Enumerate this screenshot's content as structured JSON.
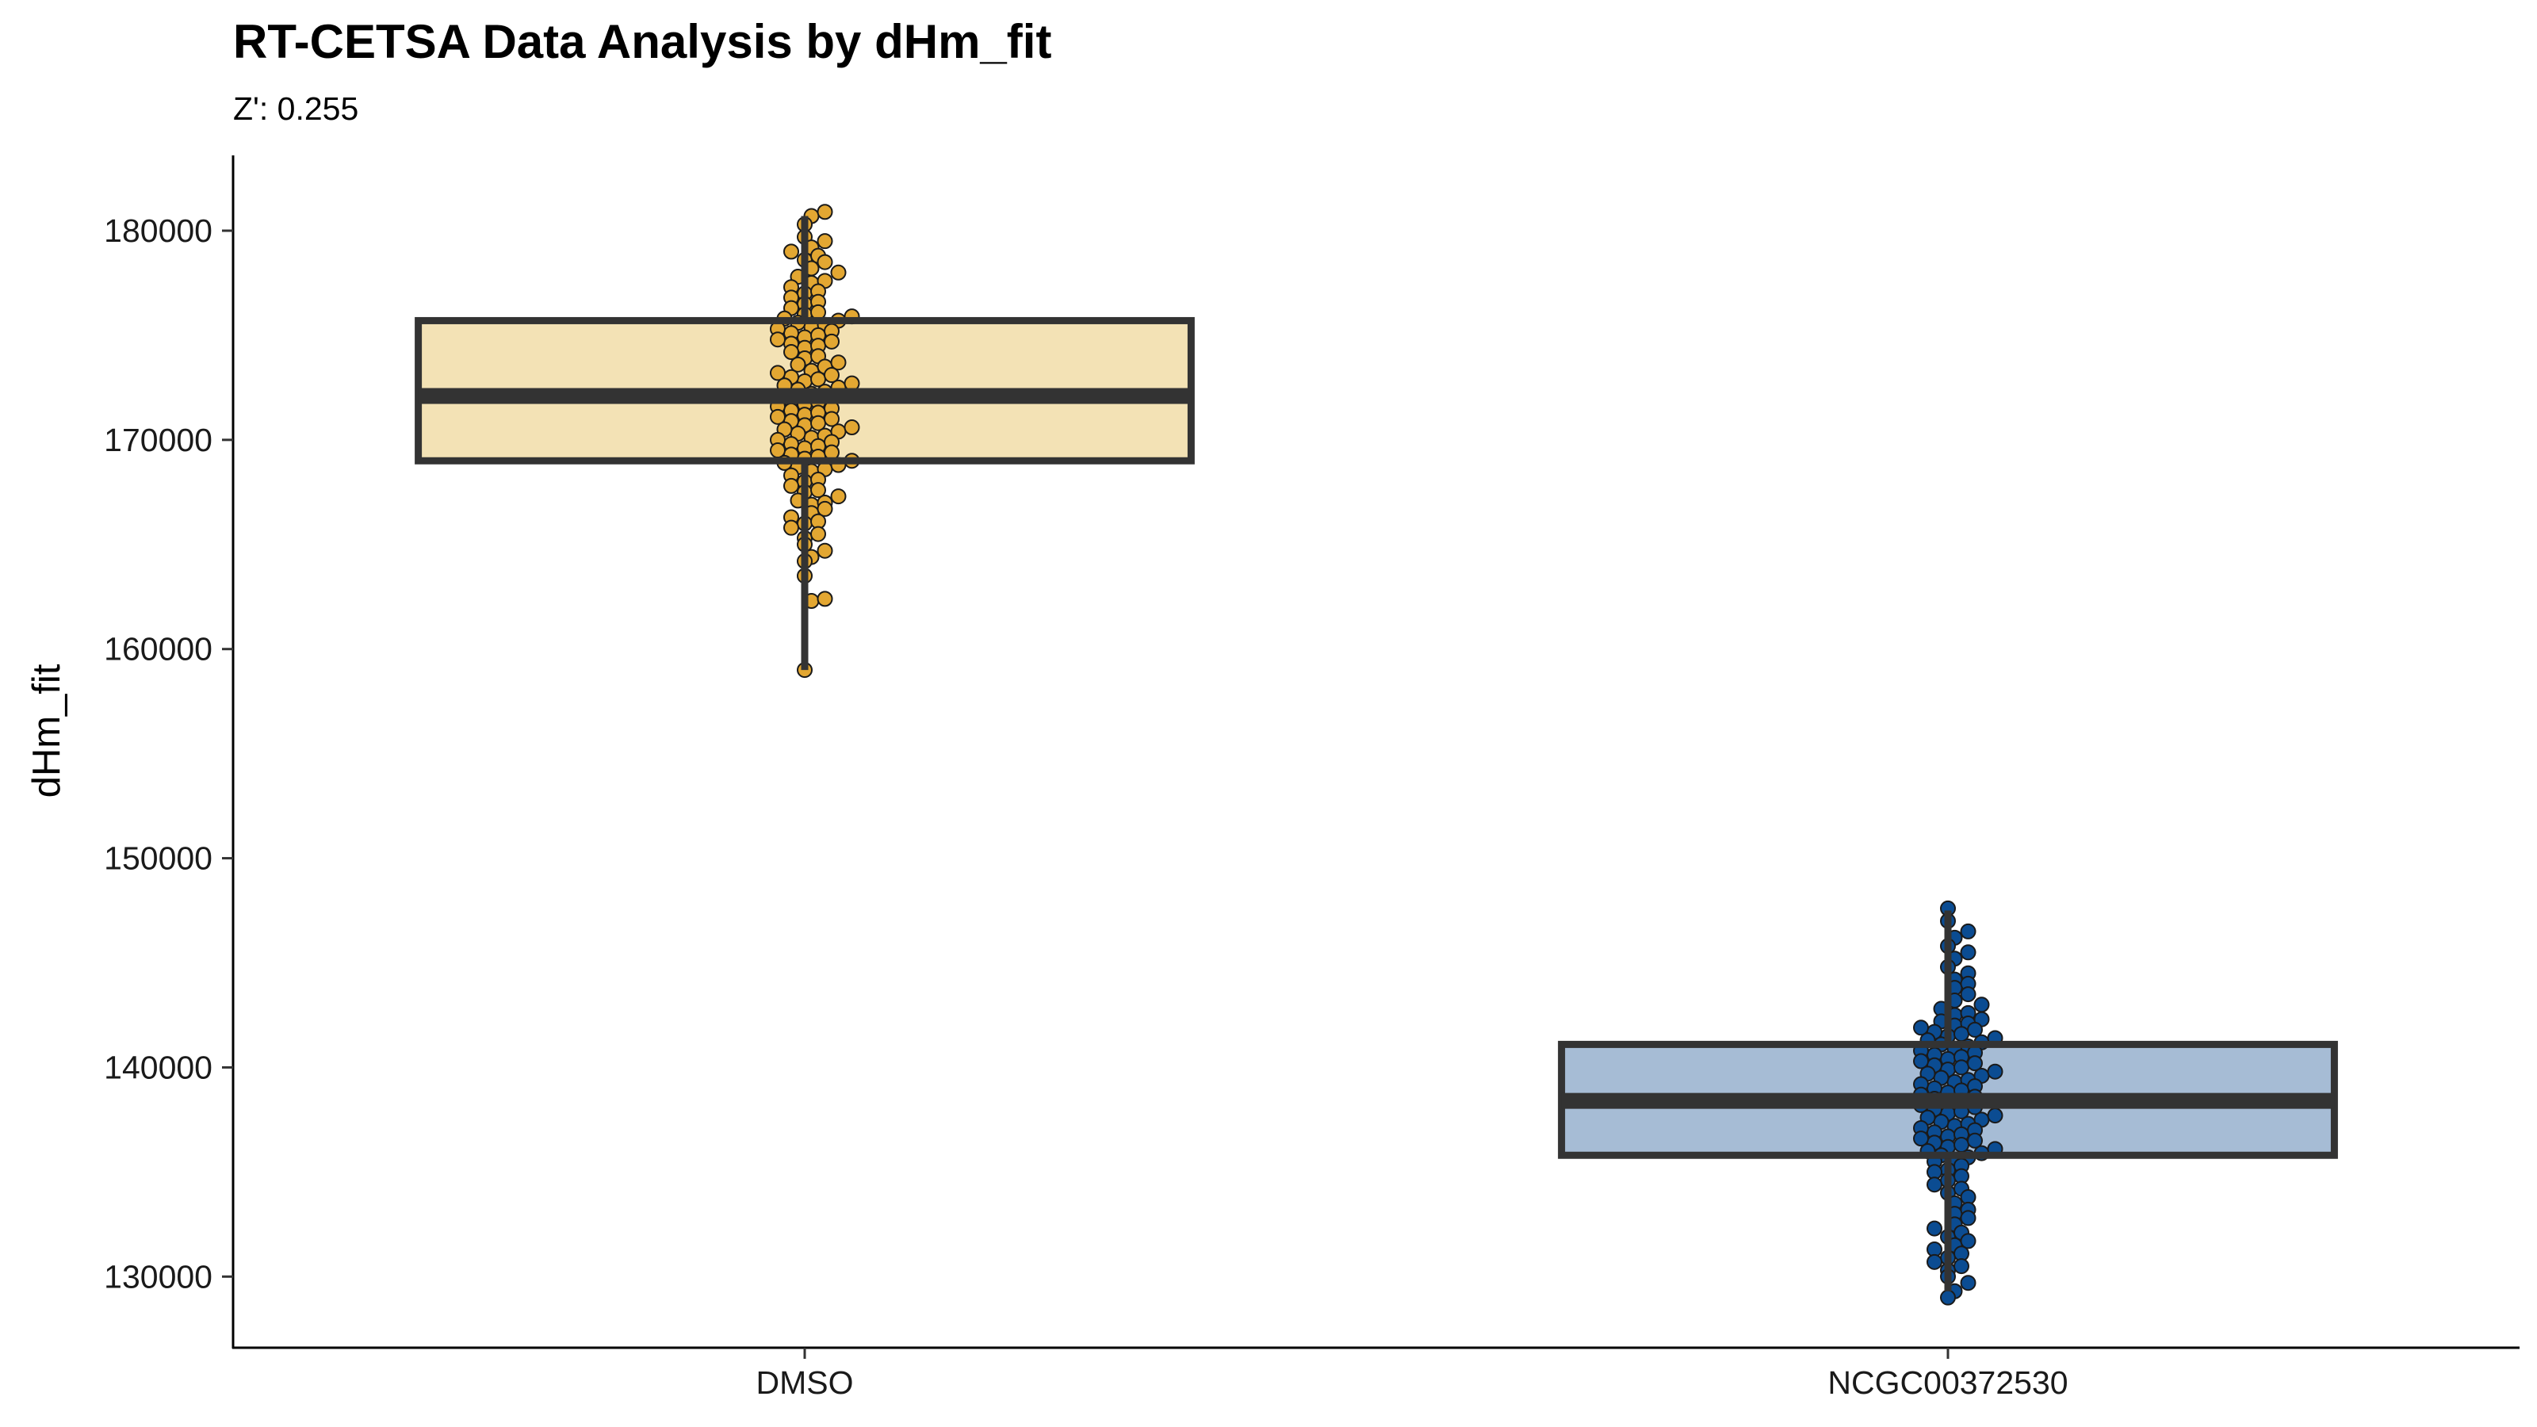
{
  "chart_data": {
    "type": "box",
    "title": "RT-CETSA Data Analysis by dHm_fit",
    "subtitle": "Z': 0.255",
    "xlabel": "",
    "ylabel": "dHm_fit",
    "ylim": [
      126600,
      183600
    ],
    "yticks": [
      130000,
      140000,
      150000,
      160000,
      170000,
      180000
    ],
    "categories": [
      "DMSO",
      "NCGC00372530"
    ],
    "grid": false,
    "legend": "none",
    "boxes": [
      {
        "category": "DMSO",
        "q1": 169000,
        "median": 172100,
        "q3": 175700,
        "whisker_low": 159000,
        "whisker_high": 180700,
        "fill": "#f3e2b5",
        "point_color": "#e3a732"
      },
      {
        "category": "NCGC00372530",
        "q1": 135800,
        "median": 138400,
        "q3": 141100,
        "whisker_low": 129300,
        "whisker_high": 147500,
        "fill": "#a6bcd5",
        "point_color": "#0b4c92"
      }
    ],
    "points": {
      "DMSO": [
        180900,
        180700,
        180300,
        179700,
        179500,
        179200,
        179000,
        178800,
        178600,
        178500,
        178200,
        178000,
        177800,
        177600,
        177500,
        177300,
        177100,
        177000,
        176800,
        176600,
        176500,
        176300,
        176100,
        176000,
        175900,
        175800,
        175700,
        175600,
        175500,
        175400,
        175300,
        175200,
        175100,
        175000,
        174900,
        174800,
        174700,
        174600,
        174500,
        174400,
        174200,
        174000,
        173900,
        173700,
        173600,
        173500,
        173300,
        173200,
        173100,
        173000,
        172900,
        172800,
        172700,
        172600,
        172500,
        172400,
        172300,
        172200,
        172100,
        172000,
        171900,
        171800,
        171700,
        171600,
        171500,
        171400,
        171300,
        171200,
        171100,
        171000,
        170900,
        170800,
        170700,
        170600,
        170500,
        170400,
        170300,
        170200,
        170100,
        170000,
        169900,
        169800,
        169700,
        169600,
        169500,
        169400,
        169300,
        169200,
        169100,
        169000,
        168900,
        168800,
        168700,
        168600,
        168500,
        168300,
        168100,
        168000,
        167800,
        167600,
        167500,
        167300,
        167100,
        167000,
        166900,
        166700,
        166500,
        166300,
        166100,
        166000,
        165800,
        165500,
        165300,
        165000,
        164700,
        164400,
        164200,
        163500,
        162400,
        162300,
        159000
      ],
      "NCGC00372530": [
        147600,
        147000,
        146500,
        146200,
        145800,
        145500,
        145200,
        144800,
        144500,
        144200,
        144000,
        143800,
        143500,
        143200,
        143000,
        142800,
        142600,
        142500,
        142300,
        142200,
        142100,
        142000,
        141900,
        141800,
        141700,
        141600,
        141500,
        141400,
        141300,
        141200,
        141100,
        141000,
        140900,
        140800,
        140700,
        140600,
        140500,
        140400,
        140300,
        140200,
        140100,
        140000,
        139900,
        139800,
        139700,
        139600,
        139500,
        139400,
        139300,
        139200,
        139100,
        139000,
        138900,
        138800,
        138700,
        138600,
        138500,
        138400,
        138300,
        138200,
        138100,
        138000,
        137900,
        137800,
        137700,
        137600,
        137500,
        137400,
        137300,
        137200,
        137100,
        137000,
        136900,
        136800,
        136700,
        136600,
        136500,
        136400,
        136300,
        136200,
        136100,
        136000,
        135900,
        135800,
        135700,
        135600,
        135500,
        135300,
        135100,
        135000,
        134800,
        134600,
        134400,
        134200,
        134000,
        133800,
        133500,
        133200,
        133000,
        132800,
        132500,
        132300,
        132100,
        131900,
        131700,
        131500,
        131300,
        131100,
        130900,
        130700,
        130500,
        130300,
        130000,
        129700,
        129300,
        129000
      ]
    }
  }
}
